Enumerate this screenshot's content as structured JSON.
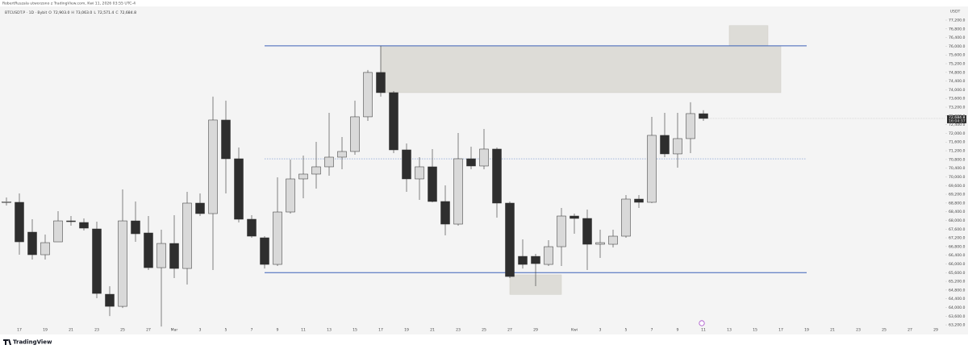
{
  "chart_data": {
    "type": "candlestick",
    "author_line": "RobertRuszala utworzono z TradingView.com, Kwi 11, 2026 03:55 UTC-4",
    "symbol": "BTCUSDT.P · 1D · Bybit",
    "ohlc_header": {
      "open_key": "O",
      "open": "72,903.0",
      "high_key": "H",
      "high": "73,063.0",
      "low_key": "L",
      "low": "72,571.4",
      "close_key": "C",
      "close": "72,684.8"
    },
    "countdown": "16:04:37",
    "currency": "USDT",
    "brand": "TradingView",
    "up_color": "#d9d9d9",
    "down_color": "#2e2e2e",
    "wick_color": "#333333",
    "grid": false,
    "categories": [
      "2026-02-16",
      "2026-02-17",
      "2026-02-18",
      "2026-02-19",
      "2026-02-20",
      "2026-02-21",
      "2026-02-22",
      "2026-02-23",
      "2026-02-24",
      "2026-02-25",
      "2026-02-26",
      "2026-02-27",
      "2026-02-28",
      "2026-03-01",
      "2026-03-02",
      "2026-03-03",
      "2026-03-04",
      "2026-03-05",
      "2026-03-06",
      "2026-03-07",
      "2026-03-08",
      "2026-03-09",
      "2026-03-10",
      "2026-03-11",
      "2026-03-12",
      "2026-03-13",
      "2026-03-14",
      "2026-03-15",
      "2026-03-16",
      "2026-03-17",
      "2026-03-18",
      "2026-03-19",
      "2026-03-20",
      "2026-03-21",
      "2026-03-22",
      "2026-03-23",
      "2026-03-24",
      "2026-03-25",
      "2026-03-26",
      "2026-03-27",
      "2026-03-28",
      "2026-03-29",
      "2026-03-30",
      "2026-03-31",
      "2026-04-01",
      "2026-04-02",
      "2026-04-03",
      "2026-04-04",
      "2026-04-05",
      "2026-04-06",
      "2026-04-07",
      "2026-04-08",
      "2026-04-09",
      "2026-04-10",
      "2026-04-11"
    ],
    "open": [
      68820,
      68832,
      67461,
      66424,
      67016,
      67979,
      67905,
      67609,
      64608,
      64052,
      67979,
      67424,
      65830,
      66942,
      65793,
      68795,
      68313,
      72611,
      70832,
      68054,
      67202,
      65979,
      68387,
      69906,
      70128,
      70462,
      70906,
      71166,
      72759,
      74797,
      73870,
      71240,
      69906,
      70462,
      68869,
      67831,
      70832,
      70499,
      71277,
      68795,
      66349,
      66349,
      65979,
      66794,
      68202,
      68091,
      66905,
      66905,
      67276,
      68980,
      68832,
      71907,
      71055,
      71758,
      72903.0
    ],
    "high": [
      69054,
      69239,
      68054,
      67350,
      68424,
      68202,
      68091,
      67942,
      64978,
      69424,
      68868,
      68202,
      67572,
      68239,
      69313,
      69239,
      73685,
      73500,
      71351,
      68239,
      67276,
      69980,
      70795,
      70980,
      71610,
      72944,
      71833,
      73500,
      74908,
      76019,
      73944,
      71536,
      70906,
      71277,
      69610,
      72018,
      71388,
      72203,
      71351,
      68869,
      67127,
      66461,
      67090,
      68573,
      68313,
      68498,
      67572,
      67572,
      69165,
      69165,
      72759,
      72944,
      72944,
      73426,
      73063.0
    ],
    "low": [
      68683,
      66424,
      66201,
      66201,
      67016,
      67757,
      67535,
      64423,
      63608,
      63978,
      67016,
      65719,
      63126,
      65349,
      65053,
      68202,
      65719,
      69239,
      67905,
      67202,
      65793,
      65905,
      68313,
      69017,
      69461,
      70054,
      70351,
      71018,
      72574,
      73685,
      71092,
      69313,
      68943,
      68832,
      67313,
      67757,
      70351,
      70351,
      68128,
      65349,
      65793,
      64979,
      65905,
      65905,
      67387,
      65719,
      66275,
      66757,
      67202,
      68573,
      68795,
      70906,
      70425,
      71092,
      72571.4
    ],
    "close": [
      68860,
      67016,
      66424,
      66979,
      67979,
      67942,
      67646,
      64645,
      64052,
      67979,
      67387,
      65830,
      66942,
      65793,
      68795,
      68313,
      72611,
      70832,
      68054,
      67276,
      65979,
      68387,
      69906,
      70128,
      70462,
      70906,
      71166,
      72759,
      74797,
      73870,
      71240,
      69906,
      70462,
      68869,
      67831,
      70832,
      70499,
      71277,
      68795,
      65423,
      65979,
      66016,
      66794,
      68202,
      68091,
      66905,
      66979,
      67276,
      68980,
      68832,
      71907,
      71055,
      71758,
      72907,
      72684.8
    ],
    "ylim": [
      62870,
      77830
    ],
    "yticks": [
      {
        "value": 63200,
        "label": "63,200.0"
      },
      {
        "value": 63600,
        "label": "63,600.0"
      },
      {
        "value": 64000,
        "label": "64,000.0"
      },
      {
        "value": 64400,
        "label": "64,400.0"
      },
      {
        "value": 64800,
        "label": "64,800.0"
      },
      {
        "value": 65200,
        "label": "65,200.0"
      },
      {
        "value": 65600,
        "label": "65,600.0"
      },
      {
        "value": 66000,
        "label": "66,000.0"
      },
      {
        "value": 66400,
        "label": "66,400.0"
      },
      {
        "value": 66800,
        "label": "66,800.0"
      },
      {
        "value": 67200,
        "label": "67,200.0"
      },
      {
        "value": 67600,
        "label": "67,600.0"
      },
      {
        "value": 68000,
        "label": "68,000.0"
      },
      {
        "value": 68400,
        "label": "68,400.0"
      },
      {
        "value": 68800,
        "label": "68,800.0"
      },
      {
        "value": 69200,
        "label": "69,200.0"
      },
      {
        "value": 69600,
        "label": "69,600.0"
      },
      {
        "value": 70000,
        "label": "70,000.0"
      },
      {
        "value": 70400,
        "label": "70,400.0"
      },
      {
        "value": 70800,
        "label": "70,800.0"
      },
      {
        "value": 71200,
        "label": "71,200.0"
      },
      {
        "value": 71600,
        "label": "71,600.0"
      },
      {
        "value": 72000,
        "label": "72,000.0"
      },
      {
        "value": 72400,
        "label": "72,400.0"
      },
      {
        "value": 72800,
        "label": "72,800.0"
      },
      {
        "value": 73200,
        "label": "73,200.0"
      },
      {
        "value": 73600,
        "label": "73,600.0"
      },
      {
        "value": 74000,
        "label": "74,000.0"
      },
      {
        "value": 74400,
        "label": "74,400.0"
      },
      {
        "value": 74800,
        "label": "74,800.0"
      },
      {
        "value": 75200,
        "label": "75,200.0"
      },
      {
        "value": 75600,
        "label": "75,600.0"
      },
      {
        "value": 76000,
        "label": "76,000.0"
      },
      {
        "value": 76400,
        "label": "76,400.0"
      },
      {
        "value": 76800,
        "label": "76,800.0"
      },
      {
        "value": 77200,
        "label": "77,200.0"
      }
    ],
    "xticks": [
      {
        "value": "2026-02-17",
        "label": "17"
      },
      {
        "value": "2026-02-19",
        "label": "19"
      },
      {
        "value": "2026-02-21",
        "label": "21"
      },
      {
        "value": "2026-02-23",
        "label": "23"
      },
      {
        "value": "2026-02-25",
        "label": "25"
      },
      {
        "value": "2026-02-27",
        "label": "27"
      },
      {
        "value": "2026-03-01",
        "label": "Mar"
      },
      {
        "value": "2026-03-03",
        "label": "3"
      },
      {
        "value": "2026-03-05",
        "label": "5"
      },
      {
        "value": "2026-03-07",
        "label": "7"
      },
      {
        "value": "2026-03-09",
        "label": "9"
      },
      {
        "value": "2026-03-11",
        "label": "11"
      },
      {
        "value": "2026-03-13",
        "label": "13"
      },
      {
        "value": "2026-03-15",
        "label": "15"
      },
      {
        "value": "2026-03-17",
        "label": "17"
      },
      {
        "value": "2026-03-19",
        "label": "19"
      },
      {
        "value": "2026-03-21",
        "label": "21"
      },
      {
        "value": "2026-03-23",
        "label": "23"
      },
      {
        "value": "2026-03-25",
        "label": "25"
      },
      {
        "value": "2026-03-27",
        "label": "27"
      },
      {
        "value": "2026-03-29",
        "label": "29"
      },
      {
        "value": "2026-04-01",
        "label": "Kwi"
      },
      {
        "value": "2026-04-03",
        "label": "3"
      },
      {
        "value": "2026-04-05",
        "label": "5"
      },
      {
        "value": "2026-04-07",
        "label": "7"
      },
      {
        "value": "2026-04-09",
        "label": "9"
      },
      {
        "value": "2026-04-11",
        "label": "11"
      },
      {
        "value": "2026-04-13",
        "label": "13"
      },
      {
        "value": "2026-04-15",
        "label": "15"
      },
      {
        "value": "2026-04-17",
        "label": "17"
      },
      {
        "value": "2026-04-19",
        "label": "19"
      },
      {
        "value": "2026-04-21",
        "label": "21"
      },
      {
        "value": "2026-04-23",
        "label": "23"
      },
      {
        "value": "2026-04-25",
        "label": "25"
      },
      {
        "value": "2026-04-27",
        "label": "27"
      },
      {
        "value": "2026-04-29",
        "label": "29"
      }
    ],
    "zones": [
      {
        "x": [
          "2026-03-17",
          "2026-04-17"
        ],
        "y": [
          73870,
          76020
        ],
        "color": "#dddcd7"
      },
      {
        "x": [
          "2026-04-13",
          "2026-04-16"
        ],
        "y": [
          76020,
          76950
        ],
        "color": "#dddcd7"
      },
      {
        "x": [
          "2026-03-27",
          "2026-03-31"
        ],
        "y": [
          64600,
          65500
        ],
        "color": "#dddcd7"
      }
    ],
    "lines": [
      {
        "x": [
          "2026-03-08",
          "2026-04-19"
        ],
        "y": 76020,
        "style": "solid",
        "color": "#3d62b8"
      },
      {
        "x": [
          "2026-03-08",
          "2026-04-19"
        ],
        "y": 65600,
        "style": "solid",
        "color": "#3d62b8"
      },
      {
        "x": [
          "2026-03-08",
          "2026-04-19"
        ],
        "y": 70830,
        "style": "dotted",
        "color": "#6f8fd0"
      }
    ]
  }
}
